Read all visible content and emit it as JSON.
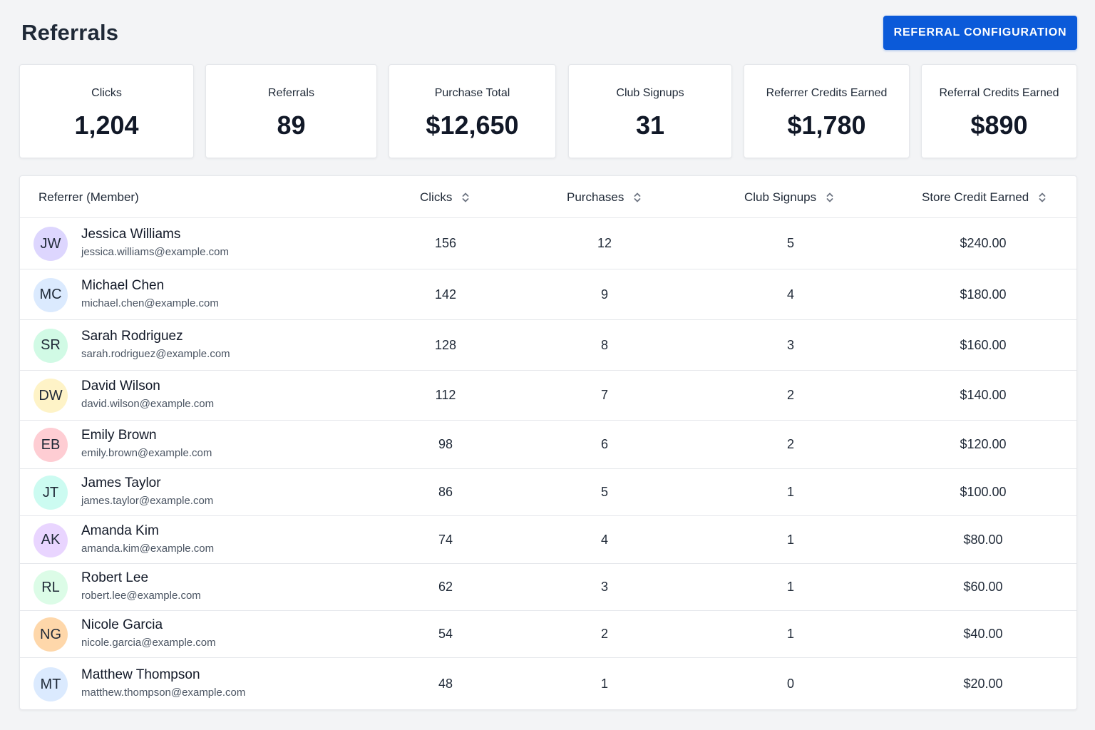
{
  "header": {
    "title": "Referrals",
    "config_button": "REFERRAL CONFIGURATION"
  },
  "stats": [
    {
      "label": "Clicks",
      "value": "1,204"
    },
    {
      "label": "Referrals",
      "value": "89"
    },
    {
      "label": "Purchase Total",
      "value": "$12,650"
    },
    {
      "label": "Club Signups",
      "value": "31"
    },
    {
      "label": "Referrer Credits Earned",
      "value": "$1,780"
    },
    {
      "label": "Referral Credits Earned",
      "value": "$890"
    }
  ],
  "table": {
    "columns": {
      "referrer": "Referrer (Member)",
      "clicks": "Clicks",
      "purchases": "Purchases",
      "club_signups": "Club Signups",
      "store_credit": "Store Credit Earned"
    },
    "rows": [
      {
        "initials": "JW",
        "name": "Jessica Williams",
        "email": "jessica.williams@example.com",
        "clicks": "156",
        "purchases": "12",
        "club_signups": "5",
        "store_credit": "$240.00",
        "avatar_color": "#ddd6fe"
      },
      {
        "initials": "MC",
        "name": "Michael Chen",
        "email": "michael.chen@example.com",
        "clicks": "142",
        "purchases": "9",
        "club_signups": "4",
        "store_credit": "$180.00",
        "avatar_color": "#dbeafe"
      },
      {
        "initials": "SR",
        "name": "Sarah Rodriguez",
        "email": "sarah.rodriguez@example.com",
        "clicks": "128",
        "purchases": "8",
        "club_signups": "3",
        "store_credit": "$160.00",
        "avatar_color": "#d1fae5"
      },
      {
        "initials": "DW",
        "name": "David Wilson",
        "email": "david.wilson@example.com",
        "clicks": "112",
        "purchases": "7",
        "club_signups": "2",
        "store_credit": "$140.00",
        "avatar_color": "#fef3c7"
      },
      {
        "initials": "EB",
        "name": "Emily Brown",
        "email": "emily.brown@example.com",
        "clicks": "98",
        "purchases": "6",
        "club_signups": "2",
        "store_credit": "$120.00",
        "avatar_color": "#fecdd3"
      },
      {
        "initials": "JT",
        "name": "James Taylor",
        "email": "james.taylor@example.com",
        "clicks": "86",
        "purchases": "5",
        "club_signups": "1",
        "store_credit": "$100.00",
        "avatar_color": "#ccfbf1"
      },
      {
        "initials": "AK",
        "name": "Amanda Kim",
        "email": "amanda.kim@example.com",
        "clicks": "74",
        "purchases": "4",
        "club_signups": "1",
        "store_credit": "$80.00",
        "avatar_color": "#e9d5ff"
      },
      {
        "initials": "RL",
        "name": "Robert Lee",
        "email": "robert.lee@example.com",
        "clicks": "62",
        "purchases": "3",
        "club_signups": "1",
        "store_credit": "$60.00",
        "avatar_color": "#dcfce7"
      },
      {
        "initials": "NG",
        "name": "Nicole Garcia",
        "email": "nicole.garcia@example.com",
        "clicks": "54",
        "purchases": "2",
        "club_signups": "1",
        "store_credit": "$40.00",
        "avatar_color": "#fed7aa"
      },
      {
        "initials": "MT",
        "name": "Matthew Thompson",
        "email": "matthew.thompson@example.com",
        "clicks": "48",
        "purchases": "1",
        "club_signups": "0",
        "store_credit": "$20.00",
        "avatar_color": "#dbeafe"
      }
    ]
  },
  "colors": {
    "accent": "#0b5ad9",
    "background": "#f3f4f6",
    "card": "#ffffff",
    "border": "#e5e7eb"
  },
  "icons": {
    "sort": "sort-updown-icon"
  }
}
